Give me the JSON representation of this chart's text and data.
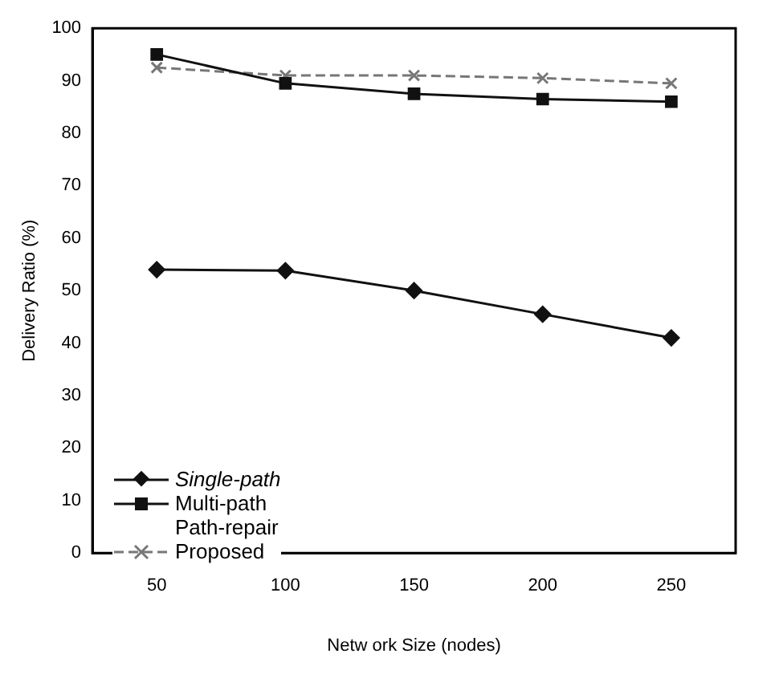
{
  "chart_data": {
    "type": "line",
    "xlabel": "Netw ork Size (nodes)",
    "ylabel": "Delivery Ratio (%)",
    "categories": [
      "50",
      "100",
      "150",
      "200",
      "250"
    ],
    "series": [
      {
        "name": "Single-path",
        "color": "#111111",
        "marker": "diamond",
        "line_style": "solid",
        "values": [
          54,
          53.8,
          50,
          45.5,
          41
        ]
      },
      {
        "name": "Multi-path\nPath-repair",
        "color": "#111111",
        "marker": "square",
        "line_style": "solid",
        "values": [
          95,
          89.5,
          87.5,
          86.5,
          86
        ]
      },
      {
        "name": "Proposed",
        "color": "#777777",
        "marker": "cross",
        "line_style": "dashed",
        "values": [
          92.5,
          91,
          91,
          90.5,
          89.5
        ]
      }
    ],
    "ylim": [
      0,
      100
    ],
    "yticks": [
      0,
      10,
      20,
      30,
      40,
      50,
      60,
      70,
      80,
      90,
      100
    ],
    "grid": false,
    "legend": "bottom left"
  }
}
